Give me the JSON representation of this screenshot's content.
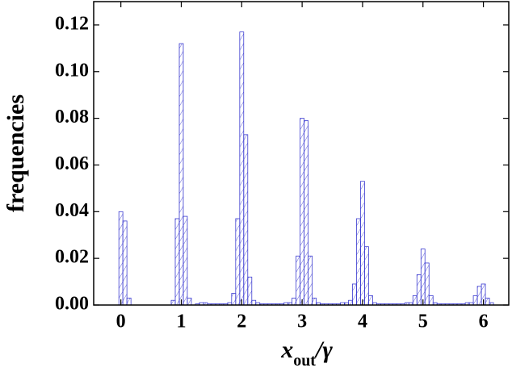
{
  "chart_data": {
    "type": "histogram",
    "ylabel": "frequencies",
    "xlabel": "x",
    "xlabel_sub": "out",
    "xlabel_rest": "/γ",
    "color": "#3b3bd0",
    "xlim": [
      -0.45,
      6.42
    ],
    "ylim": [
      0,
      0.13
    ],
    "xticks": [
      0,
      1,
      2,
      3,
      4,
      5,
      6
    ],
    "yticks": [
      {
        "value": 0,
        "label": "0.00"
      },
      {
        "value": 0.02,
        "label": "0.02"
      },
      {
        "value": 0.04,
        "label": "0.04"
      },
      {
        "value": 0.06,
        "label": "0.06"
      },
      {
        "value": 0.08,
        "label": "0.08"
      },
      {
        "value": 0.1,
        "label": "0.10"
      },
      {
        "value": 0.12,
        "label": "0.12"
      }
    ],
    "bins": [
      -0.033,
      0.033,
      0.1,
      0.167,
      0.233,
      0.3,
      0.367,
      0.433,
      0.5,
      0.567,
      0.633,
      0.7,
      0.767,
      0.833,
      0.9,
      0.967,
      1.033,
      1.1,
      1.167,
      1.233,
      1.3,
      1.367,
      1.433,
      1.5,
      1.567,
      1.633,
      1.7,
      1.767,
      1.833,
      1.9,
      1.967,
      2.033,
      2.1,
      2.167,
      2.233,
      2.3,
      2.367,
      2.433,
      2.5,
      2.567,
      2.633,
      2.7,
      2.767,
      2.833,
      2.9,
      2.967,
      3.033,
      3.1,
      3.167,
      3.233,
      3.3,
      3.367,
      3.433,
      3.5,
      3.567,
      3.633,
      3.7,
      3.767,
      3.833,
      3.9,
      3.967,
      4.033,
      4.1,
      4.167,
      4.233,
      4.3,
      4.367,
      4.433,
      4.5,
      4.567,
      4.633,
      4.7,
      4.767,
      4.833,
      4.9,
      4.967,
      5.033,
      5.1,
      5.167,
      5.233,
      5.3,
      5.367,
      5.433,
      5.5,
      5.567,
      5.633,
      5.7,
      5.767,
      5.833,
      5.9,
      5.967,
      6.033,
      6.1,
      6.167,
      6.233,
      6.3
    ],
    "counts": [
      0.04,
      0.036,
      0.003,
      0,
      0,
      0,
      0,
      0,
      0,
      0,
      0,
      0,
      0,
      0.002,
      0.037,
      0.112,
      0.038,
      0.003,
      0,
      0.0005,
      0.001,
      0.001,
      0.0005,
      0.0005,
      0.0005,
      0.0005,
      0.0005,
      0.001,
      0.005,
      0.037,
      0.117,
      0.073,
      0.012,
      0.002,
      0.001,
      0.0005,
      0.0005,
      0.0005,
      0.0005,
      0.0005,
      0.0005,
      0.001,
      0.001,
      0.003,
      0.021,
      0.08,
      0.079,
      0.021,
      0.003,
      0.001,
      0.0005,
      0.0005,
      0.0005,
      0.0005,
      0.0005,
      0.001,
      0.001,
      0.002,
      0.009,
      0.037,
      0.053,
      0.025,
      0.004,
      0.001,
      0.0005,
      0.0005,
      0.0005,
      0.0005,
      0.0005,
      0.0005,
      0.0005,
      0.001,
      0.001,
      0.004,
      0.013,
      0.024,
      0.018,
      0.004,
      0.001,
      0.0005,
      0.0005,
      0.0005,
      0.0005,
      0.0005,
      0.0005,
      0.0005,
      0.001,
      0.001,
      0.004,
      0.008,
      0.009,
      0.003,
      0.001,
      0,
      0
    ]
  }
}
